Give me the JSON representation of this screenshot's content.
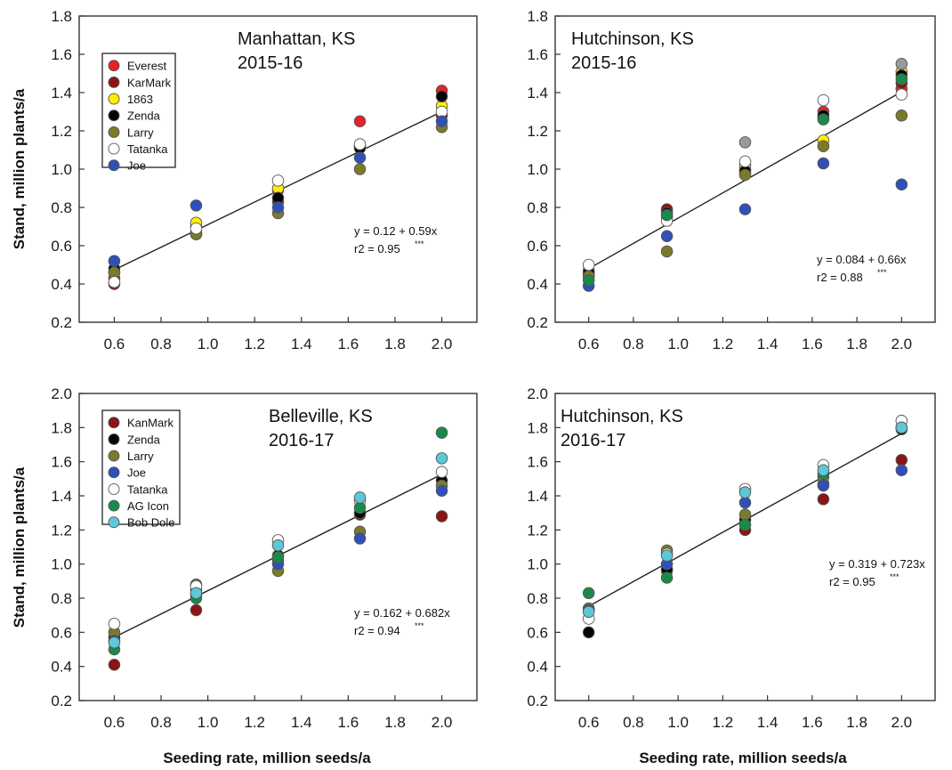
{
  "figure": {
    "x_axis_title": "Seeding rate, million seeds/a",
    "y_axis_title": "Stand, million plants/a"
  },
  "chart_data": [
    {
      "type": "scatter",
      "title": "Manhattan, KS",
      "subtitle": "2015-16",
      "xlabel": "",
      "ylabel": "Stand, million plants/a",
      "xlim": [
        0.45,
        2.15
      ],
      "ylim": [
        0.2,
        1.8
      ],
      "xticks": [
        "0.6",
        "0.8",
        "1.0",
        "1.2",
        "1.4",
        "1.6",
        "1.8",
        "2.0"
      ],
      "yticks": [
        "0.2",
        "0.4",
        "0.6",
        "0.8",
        "1.0",
        "1.2",
        "1.4",
        "1.6",
        "1.8"
      ],
      "regression": {
        "intercept": 0.12,
        "slope": 0.59,
        "x_range": [
          0.6,
          2.0
        ],
        "equation_main": "y = 0.12 + 0.59x",
        "r2_main": "r2 = 0.95",
        "r2_sig": "***"
      },
      "legend": true,
      "series": [
        {
          "name": "Everest",
          "color": "#e8202a",
          "points": [
            [
              0.6,
              0.43
            ],
            [
              0.95,
              0.7
            ],
            [
              1.3,
              0.89
            ],
            [
              1.65,
              1.25
            ],
            [
              2.0,
              1.41
            ]
          ]
        },
        {
          "name": "KarMark",
          "color": "#8b1414",
          "points": [
            [
              0.6,
              0.4
            ],
            [
              0.95,
              0.67
            ],
            [
              1.3,
              0.83
            ],
            [
              1.65,
              1.12
            ],
            [
              2.0,
              1.28
            ]
          ]
        },
        {
          "name": "1863",
          "color": "#ffee00",
          "points": [
            [
              0.6,
              0.46
            ],
            [
              0.95,
              0.72
            ],
            [
              1.3,
              0.9
            ],
            [
              1.65,
              1.12
            ],
            [
              2.0,
              1.33
            ]
          ]
        },
        {
          "name": "Zenda",
          "color": "#050505",
          "points": [
            [
              0.6,
              0.48
            ],
            [
              0.95,
              0.66
            ],
            [
              1.3,
              0.85
            ],
            [
              1.65,
              1.11
            ],
            [
              2.0,
              1.38
            ]
          ]
        },
        {
          "name": "Larry",
          "color": "#7a7a2a",
          "points": [
            [
              0.6,
              0.46
            ],
            [
              0.95,
              0.66
            ],
            [
              1.3,
              0.77
            ],
            [
              1.65,
              1.0
            ],
            [
              2.0,
              1.22
            ]
          ]
        },
        {
          "name": "Tatanka",
          "color": "#ffffff",
          "points": [
            [
              0.6,
              0.41
            ],
            [
              0.95,
              0.69
            ],
            [
              1.3,
              0.94
            ],
            [
              1.65,
              1.13
            ],
            [
              2.0,
              1.3
            ]
          ]
        },
        {
          "name": "Joe",
          "color": "#3050b8",
          "points": [
            [
              0.6,
              0.52
            ],
            [
              0.95,
              0.81
            ],
            [
              1.3,
              0.8
            ],
            [
              1.65,
              1.06
            ],
            [
              2.0,
              1.25
            ]
          ]
        }
      ]
    },
    {
      "type": "scatter",
      "title": "Hutchinson, KS",
      "subtitle": "2015-16",
      "xlabel": "",
      "ylabel": "",
      "xlim": [
        0.45,
        2.15
      ],
      "ylim": [
        0.2,
        1.8
      ],
      "xticks": [
        "0.6",
        "0.8",
        "1.0",
        "1.2",
        "1.4",
        "1.6",
        "1.8",
        "2.0"
      ],
      "yticks": [
        "0.2",
        "0.4",
        "0.6",
        "0.8",
        "1.0",
        "1.2",
        "1.4",
        "1.6",
        "1.8"
      ],
      "regression": {
        "intercept": 0.084,
        "slope": 0.66,
        "x_range": [
          0.6,
          2.0
        ],
        "equation_main": "y = 0.084 + 0.66x",
        "r2_main": "r2 = 0.88",
        "r2_sig": "***"
      },
      "legend": false,
      "series": [
        {
          "name": "Everest",
          "color": "#e8202a",
          "points": [
            [
              0.6,
              0.45
            ],
            [
              0.95,
              0.78
            ],
            [
              1.3,
              1.0
            ],
            [
              1.65,
              1.3
            ],
            [
              2.0,
              1.42
            ]
          ]
        },
        {
          "name": "KarMark",
          "color": "#8b1414",
          "points": [
            [
              0.6,
              0.44
            ],
            [
              0.95,
              0.79
            ],
            [
              1.3,
              0.98
            ],
            [
              1.65,
              1.27
            ],
            [
              2.0,
              1.45
            ]
          ]
        },
        {
          "name": "1863",
          "color": "#ffee00",
          "points": [
            [
              0.6,
              0.47
            ],
            [
              0.95,
              0.75
            ],
            [
              1.3,
              1.02
            ],
            [
              1.65,
              1.15
            ],
            [
              2.0,
              1.51
            ]
          ]
        },
        {
          "name": "Zenda",
          "color": "#050505",
          "points": [
            [
              0.6,
              0.46
            ],
            [
              0.95,
              0.77
            ],
            [
              1.3,
              0.99
            ],
            [
              1.65,
              1.28
            ],
            [
              2.0,
              1.49
            ]
          ]
        },
        {
          "name": "Larry",
          "color": "#7a7a2a",
          "points": [
            [
              0.6,
              0.44
            ],
            [
              0.95,
              0.57
            ],
            [
              1.3,
              0.97
            ],
            [
              1.65,
              1.12
            ],
            [
              2.0,
              1.28
            ]
          ]
        },
        {
          "name": "Tatanka",
          "color": "#ffffff",
          "points": [
            [
              0.6,
              0.5
            ],
            [
              0.95,
              0.73
            ],
            [
              1.3,
              1.04
            ],
            [
              1.65,
              1.36
            ],
            [
              2.0,
              1.39
            ]
          ]
        },
        {
          "name": "Joe",
          "color": "#3050b8",
          "points": [
            [
              0.6,
              0.39
            ],
            [
              0.95,
              0.65
            ],
            [
              1.3,
              0.79
            ],
            [
              1.65,
              1.03
            ],
            [
              2.0,
              0.92
            ]
          ]
        },
        {
          "name": "AG Icon",
          "color": "#1a8a4a",
          "points": [
            [
              0.6,
              0.42
            ],
            [
              0.95,
              0.76
            ],
            [
              1.65,
              1.26
            ],
            [
              2.0,
              1.47
            ]
          ]
        },
        {
          "name": "Bob Dole",
          "color": "#9a9a9a",
          "points": [
            [
              1.3,
              1.14
            ],
            [
              2.0,
              1.55
            ]
          ]
        }
      ]
    },
    {
      "type": "scatter",
      "title": "Belleville, KS",
      "subtitle": "2016-17",
      "xlabel": "Seeding rate, million seeds/a",
      "ylabel": "Stand, million plants/a",
      "xlim": [
        0.45,
        2.15
      ],
      "ylim": [
        0.2,
        2.0
      ],
      "xticks": [
        "0.6",
        "0.8",
        "1.0",
        "1.2",
        "1.4",
        "1.6",
        "1.8",
        "2.0"
      ],
      "yticks": [
        "0.2",
        "0.4",
        "0.6",
        "0.8",
        "1.0",
        "1.2",
        "1.4",
        "1.6",
        "1.8",
        "2.0"
      ],
      "regression": {
        "intercept": 0.162,
        "slope": 0.682,
        "x_range": [
          0.6,
          2.0
        ],
        "equation_main": "y = 0.162 + 0.682x",
        "r2_main": "r2 = 0.94",
        "r2_sig": "***"
      },
      "legend": true,
      "series": [
        {
          "name": "KanMark",
          "color": "#8b1414",
          "points": [
            [
              0.6,
              0.41
            ],
            [
              0.95,
              0.73
            ],
            [
              1.3,
              1.02
            ],
            [
              1.65,
              1.29
            ],
            [
              2.0,
              1.28
            ]
          ]
        },
        {
          "name": "Zenda",
          "color": "#050505",
          "points": [
            [
              0.6,
              0.57
            ],
            [
              0.95,
              0.82
            ],
            [
              1.3,
              1.05
            ],
            [
              1.65,
              1.3
            ],
            [
              2.0,
              1.49
            ]
          ]
        },
        {
          "name": "Larry",
          "color": "#7a7a2a",
          "points": [
            [
              0.6,
              0.6
            ],
            [
              0.95,
              0.88
            ],
            [
              1.3,
              0.96
            ],
            [
              1.65,
              1.19
            ],
            [
              2.0,
              1.46
            ]
          ]
        },
        {
          "name": "Joe",
          "color": "#3050b8",
          "points": [
            [
              0.6,
              0.55
            ],
            [
              0.95,
              0.85
            ],
            [
              1.3,
              1.0
            ],
            [
              1.65,
              1.15
            ],
            [
              2.0,
              1.43
            ]
          ]
        },
        {
          "name": "Tatanka",
          "color": "#ffffff",
          "points": [
            [
              0.6,
              0.65
            ],
            [
              0.95,
              0.87
            ],
            [
              1.3,
              1.14
            ],
            [
              1.65,
              1.37
            ],
            [
              2.0,
              1.54
            ]
          ]
        },
        {
          "name": "AG Icon",
          "color": "#1a8a4a",
          "points": [
            [
              0.6,
              0.5
            ],
            [
              0.95,
              0.8
            ],
            [
              1.3,
              1.04
            ],
            [
              1.65,
              1.33
            ],
            [
              2.0,
              1.77
            ]
          ]
        },
        {
          "name": "Bob Dole",
          "color": "#5cc8d8",
          "points": [
            [
              0.6,
              0.54
            ],
            [
              0.95,
              0.83
            ],
            [
              1.3,
              1.11
            ],
            [
              1.65,
              1.39
            ],
            [
              2.0,
              1.62
            ]
          ]
        }
      ]
    },
    {
      "type": "scatter",
      "title": "Hutchinson, KS",
      "subtitle": "2016-17",
      "xlabel": "Seeding rate, million seeds/a",
      "ylabel": "",
      "xlim": [
        0.45,
        2.15
      ],
      "ylim": [
        0.2,
        2.0
      ],
      "xticks": [
        "0.6",
        "0.8",
        "1.0",
        "1.2",
        "1.4",
        "1.6",
        "1.8",
        "2.0"
      ],
      "yticks": [
        "0.2",
        "0.4",
        "0.6",
        "0.8",
        "1.0",
        "1.2",
        "1.4",
        "1.6",
        "1.8",
        "2.0"
      ],
      "regression": {
        "intercept": 0.319,
        "slope": 0.723,
        "x_range": [
          0.6,
          2.0
        ],
        "equation_main": "y = 0.319 + 0.723x",
        "r2_main": "r2 = 0.95",
        "r2_sig": "***"
      },
      "legend": false,
      "series": [
        {
          "name": "KanMark",
          "color": "#8b1414",
          "points": [
            [
              0.6,
              0.73
            ],
            [
              0.95,
              0.96
            ],
            [
              1.3,
              1.2
            ],
            [
              1.65,
              1.38
            ],
            [
              2.0,
              1.61
            ]
          ]
        },
        {
          "name": "Zenda",
          "color": "#050505",
          "points": [
            [
              0.6,
              0.6
            ],
            [
              0.95,
              0.97
            ],
            [
              1.3,
              1.26
            ],
            [
              1.65,
              1.47
            ],
            [
              2.0,
              1.79
            ]
          ]
        },
        {
          "name": "Larry",
          "color": "#7a7a2a",
          "points": [
            [
              0.6,
              0.74
            ],
            [
              0.95,
              1.08
            ],
            [
              1.3,
              1.29
            ],
            [
              1.65,
              1.51
            ],
            [
              2.0,
              1.8
            ]
          ]
        },
        {
          "name": "Joe",
          "color": "#3050b8",
          "points": [
            [
              0.6,
              0.73
            ],
            [
              0.95,
              1.0
            ],
            [
              1.3,
              1.36
            ],
            [
              1.65,
              1.46
            ],
            [
              2.0,
              1.55
            ]
          ]
        },
        {
          "name": "Tatanka",
          "color": "#ffffff",
          "points": [
            [
              0.6,
              0.68
            ],
            [
              0.95,
              1.06
            ],
            [
              1.3,
              1.44
            ],
            [
              1.65,
              1.58
            ],
            [
              2.0,
              1.84
            ]
          ]
        },
        {
          "name": "AG Icon",
          "color": "#1a8a4a",
          "points": [
            [
              0.6,
              0.83
            ],
            [
              0.95,
              0.92
            ],
            [
              1.3,
              1.23
            ],
            [
              1.65,
              1.53
            ],
            [
              2.0,
              1.8
            ]
          ]
        },
        {
          "name": "Bob Dole",
          "color": "#5cc8d8",
          "points": [
            [
              0.6,
              0.72
            ],
            [
              0.95,
              1.05
            ],
            [
              1.3,
              1.42
            ],
            [
              1.65,
              1.55
            ],
            [
              2.0,
              1.8
            ]
          ]
        }
      ]
    }
  ]
}
